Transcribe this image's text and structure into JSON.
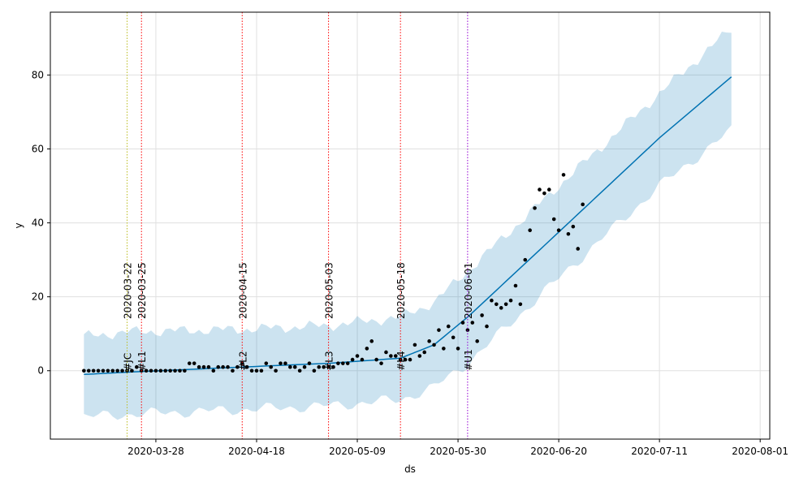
{
  "chart_data": {
    "type": "line",
    "title": "",
    "xlabel": "ds",
    "ylabel": "y",
    "x_axis_type": "date",
    "xlim": [
      "2020-03-06",
      "2020-08-03"
    ],
    "ylim": [
      -18.5,
      97
    ],
    "grid": true,
    "x_tick_labels": [
      "2020-03-28",
      "2020-04-18",
      "2020-05-09",
      "2020-05-30",
      "2020-06-20",
      "2020-07-11",
      "2020-08-01"
    ],
    "y_tick_values": [
      0,
      20,
      40,
      60,
      80
    ],
    "colors": {
      "forecast_line": "#0072B2",
      "uncertainty_band": "#0072B2",
      "observed_points": "#000000",
      "changepoint_lines": "#ff0000",
      "event_line_jc": "#bcbd22",
      "event_line_u1": "#9400d3"
    },
    "event_lines": [
      {
        "date": "2020-03-22",
        "date_label": "2020-03-22",
        "tag": "#JC",
        "color": "#bcbd22"
      },
      {
        "date": "2020-03-25",
        "date_label": "2020-03-25",
        "tag": "#L1",
        "color": "#ff0000"
      },
      {
        "date": "2020-04-15",
        "date_label": "2020-04-15",
        "tag": "#L2",
        "color": "#ff0000"
      },
      {
        "date": "2020-05-03",
        "date_label": "2020-05-03",
        "tag": "#L3",
        "color": "#ff0000"
      },
      {
        "date": "2020-05-18",
        "date_label": "2020-05-18",
        "tag": "#L4",
        "color": "#ff0000"
      },
      {
        "date": "2020-06-01",
        "date_label": "2020-06-01",
        "tag": "#U1",
        "color": "#9400d3"
      }
    ],
    "series": [
      {
        "type": "line",
        "x": [
          "2020-03-13",
          "2020-03-22",
          "2020-04-15",
          "2020-05-03",
          "2020-05-18",
          "2020-05-25",
          "2020-06-01",
          "2020-06-20",
          "2020-07-11",
          "2020-07-26"
        ],
        "y": [
          -1,
          -0.4,
          1.0,
          2.0,
          3.4,
          7.0,
          14.5,
          37.5,
          63.0,
          79.5
        ]
      },
      {
        "type": "band",
        "x": [
          "2020-03-13",
          "2020-03-22",
          "2020-04-15",
          "2020-05-03",
          "2020-05-18",
          "2020-05-25",
          "2020-06-01",
          "2020-06-20",
          "2020-07-11",
          "2020-07-26"
        ],
        "lower": [
          -12.5,
          -11.8,
          -10.5,
          -9.5,
          -7.8,
          -4.5,
          2.0,
          25.0,
          50.0,
          65.0
        ],
        "upper": [
          9.2,
          10.5,
          11.2,
          12.2,
          14.5,
          18.5,
          27.0,
          50.0,
          75.0,
          92.5
        ]
      },
      {
        "type": "scatter",
        "points": [
          [
            "2020-03-13",
            0
          ],
          [
            "2020-03-14",
            0
          ],
          [
            "2020-03-15",
            0
          ],
          [
            "2020-03-16",
            0
          ],
          [
            "2020-03-17",
            0
          ],
          [
            "2020-03-18",
            0
          ],
          [
            "2020-03-19",
            0
          ],
          [
            "2020-03-20",
            0
          ],
          [
            "2020-03-21",
            0
          ],
          [
            "2020-03-22",
            0
          ],
          [
            "2020-03-23",
            0
          ],
          [
            "2020-03-24",
            1
          ],
          [
            "2020-03-25",
            0
          ],
          [
            "2020-03-26",
            0
          ],
          [
            "2020-03-27",
            0
          ],
          [
            "2020-03-28",
            0
          ],
          [
            "2020-03-29",
            0
          ],
          [
            "2020-03-30",
            0
          ],
          [
            "2020-03-31",
            0
          ],
          [
            "2020-04-01",
            0
          ],
          [
            "2020-04-02",
            0
          ],
          [
            "2020-04-03",
            0
          ],
          [
            "2020-04-04",
            2
          ],
          [
            "2020-04-05",
            2
          ],
          [
            "2020-04-06",
            1
          ],
          [
            "2020-04-07",
            1
          ],
          [
            "2020-04-08",
            1
          ],
          [
            "2020-04-09",
            0
          ],
          [
            "2020-04-10",
            1
          ],
          [
            "2020-04-11",
            1
          ],
          [
            "2020-04-12",
            1
          ],
          [
            "2020-04-13",
            0
          ],
          [
            "2020-04-14",
            1
          ],
          [
            "2020-04-15",
            2
          ],
          [
            "2020-04-16",
            1
          ],
          [
            "2020-04-17",
            0
          ],
          [
            "2020-04-18",
            0
          ],
          [
            "2020-04-19",
            0
          ],
          [
            "2020-04-20",
            2
          ],
          [
            "2020-04-21",
            1
          ],
          [
            "2020-04-22",
            0
          ],
          [
            "2020-04-23",
            2
          ],
          [
            "2020-04-24",
            2
          ],
          [
            "2020-04-25",
            1
          ],
          [
            "2020-04-26",
            1
          ],
          [
            "2020-04-27",
            0
          ],
          [
            "2020-04-28",
            1
          ],
          [
            "2020-04-29",
            2
          ],
          [
            "2020-04-30",
            0
          ],
          [
            "2020-05-01",
            1
          ],
          [
            "2020-05-02",
            1
          ],
          [
            "2020-05-03",
            1
          ],
          [
            "2020-05-04",
            1
          ],
          [
            "2020-05-05",
            2
          ],
          [
            "2020-05-06",
            2
          ],
          [
            "2020-05-07",
            2
          ],
          [
            "2020-05-08",
            3
          ],
          [
            "2020-05-09",
            4
          ],
          [
            "2020-05-10",
            3
          ],
          [
            "2020-05-11",
            6
          ],
          [
            "2020-05-12",
            8
          ],
          [
            "2020-05-13",
            3
          ],
          [
            "2020-05-14",
            2
          ],
          [
            "2020-05-15",
            5
          ],
          [
            "2020-05-16",
            4
          ],
          [
            "2020-05-17",
            4
          ],
          [
            "2020-05-18",
            3
          ],
          [
            "2020-05-19",
            3
          ],
          [
            "2020-05-20",
            3
          ],
          [
            "2020-05-21",
            7
          ],
          [
            "2020-05-22",
            4
          ],
          [
            "2020-05-23",
            5
          ],
          [
            "2020-05-24",
            8
          ],
          [
            "2020-05-25",
            7
          ],
          [
            "2020-05-26",
            11
          ],
          [
            "2020-05-27",
            6
          ],
          [
            "2020-05-28",
            12
          ],
          [
            "2020-05-29",
            9
          ],
          [
            "2020-05-30",
            6
          ],
          [
            "2020-05-31",
            13
          ],
          [
            "2020-06-01",
            11
          ],
          [
            "2020-06-02",
            13
          ],
          [
            "2020-06-03",
            8
          ],
          [
            "2020-06-04",
            15
          ],
          [
            "2020-06-05",
            12
          ],
          [
            "2020-06-06",
            19
          ],
          [
            "2020-06-07",
            18
          ],
          [
            "2020-06-08",
            17
          ],
          [
            "2020-06-09",
            18
          ],
          [
            "2020-06-10",
            19
          ],
          [
            "2020-06-11",
            23
          ],
          [
            "2020-06-12",
            18
          ],
          [
            "2020-06-13",
            30
          ],
          [
            "2020-06-14",
            38
          ],
          [
            "2020-06-15",
            44
          ],
          [
            "2020-06-16",
            49
          ],
          [
            "2020-06-17",
            48
          ],
          [
            "2020-06-18",
            49
          ],
          [
            "2020-06-19",
            41
          ],
          [
            "2020-06-20",
            38
          ],
          [
            "2020-06-21",
            53
          ],
          [
            "2020-06-22",
            37
          ],
          [
            "2020-06-23",
            39
          ],
          [
            "2020-06-24",
            33
          ],
          [
            "2020-06-25",
            45
          ]
        ]
      }
    ]
  }
}
